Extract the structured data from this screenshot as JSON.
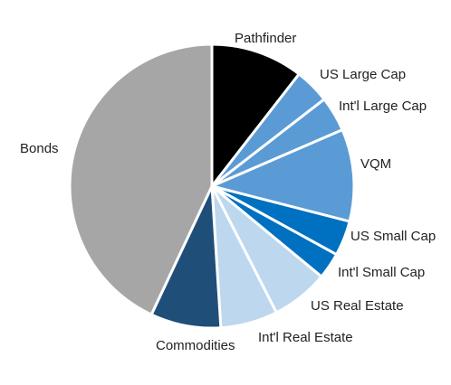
{
  "chart_data": {
    "type": "pie",
    "title": "",
    "start_angle_deg": 0,
    "direction": "clockwise",
    "slices": [
      {
        "label": "Pathfinder",
        "value": 10.5,
        "color": "#000000"
      },
      {
        "label": "US Large Cap",
        "value": 4.0,
        "color": "#5b9bd5"
      },
      {
        "label": "Int'l Large Cap",
        "value": 4.0,
        "color": "#5b9bd5"
      },
      {
        "label": "VQM",
        "value": 10.5,
        "color": "#5b9bd5"
      },
      {
        "label": "US Small Cap",
        "value": 4.0,
        "color": "#0070c0"
      },
      {
        "label": "Int'l Small Cap",
        "value": 3.0,
        "color": "#0070c0"
      },
      {
        "label": "US Real Estate",
        "value": 6.5,
        "color": "#bdd7ee"
      },
      {
        "label": "Int'l Real Estate",
        "value": 6.5,
        "color": "#bdd7ee"
      },
      {
        "label": "Commodities",
        "value": 8.0,
        "color": "#1f4e79"
      },
      {
        "label": "Bonds",
        "value": 43.0,
        "color": "#a6a6a6"
      }
    ]
  }
}
